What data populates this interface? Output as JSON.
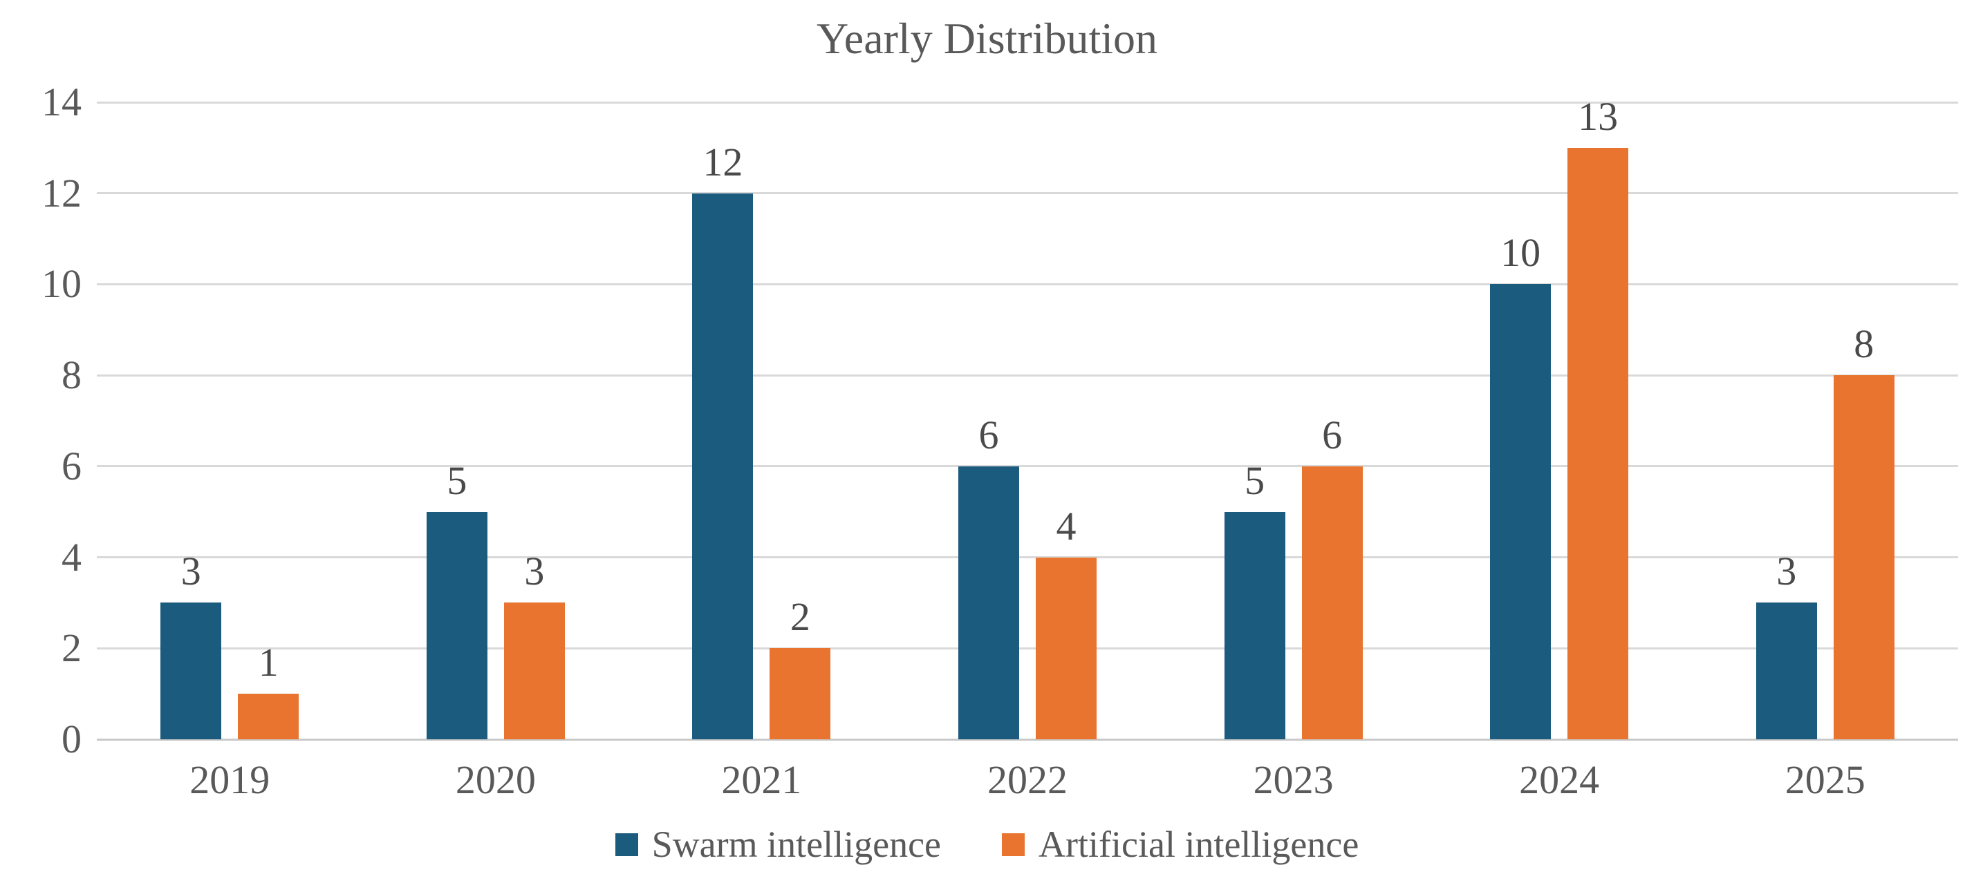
{
  "page": {
    "background": "#ffffff",
    "text_color": "#595959"
  },
  "chart_data": {
    "type": "bar",
    "title": "Yearly Distribution",
    "categories": [
      "2019",
      "2020",
      "2021",
      "2022",
      "2023",
      "2024",
      "2025"
    ],
    "series": [
      {
        "name": "Swarm intelligence",
        "color": "#1b5b7e",
        "values": [
          3,
          5,
          12,
          6,
          5,
          10,
          3
        ]
      },
      {
        "name": "Artificial intelligence",
        "color": "#e8742f",
        "values": [
          1,
          3,
          2,
          4,
          6,
          13,
          8
        ]
      }
    ],
    "xlabel": "",
    "ylabel": "",
    "ylim": [
      0,
      14
    ],
    "y_ticks": [
      0,
      2,
      4,
      6,
      8,
      10,
      12,
      14
    ],
    "grid": true,
    "gridline_color": "#d9d9d9",
    "axisline_color": "#c9c9c9",
    "data_labels": true,
    "data_label_color": "#4a4a4a",
    "legend_position": "bottom"
  }
}
